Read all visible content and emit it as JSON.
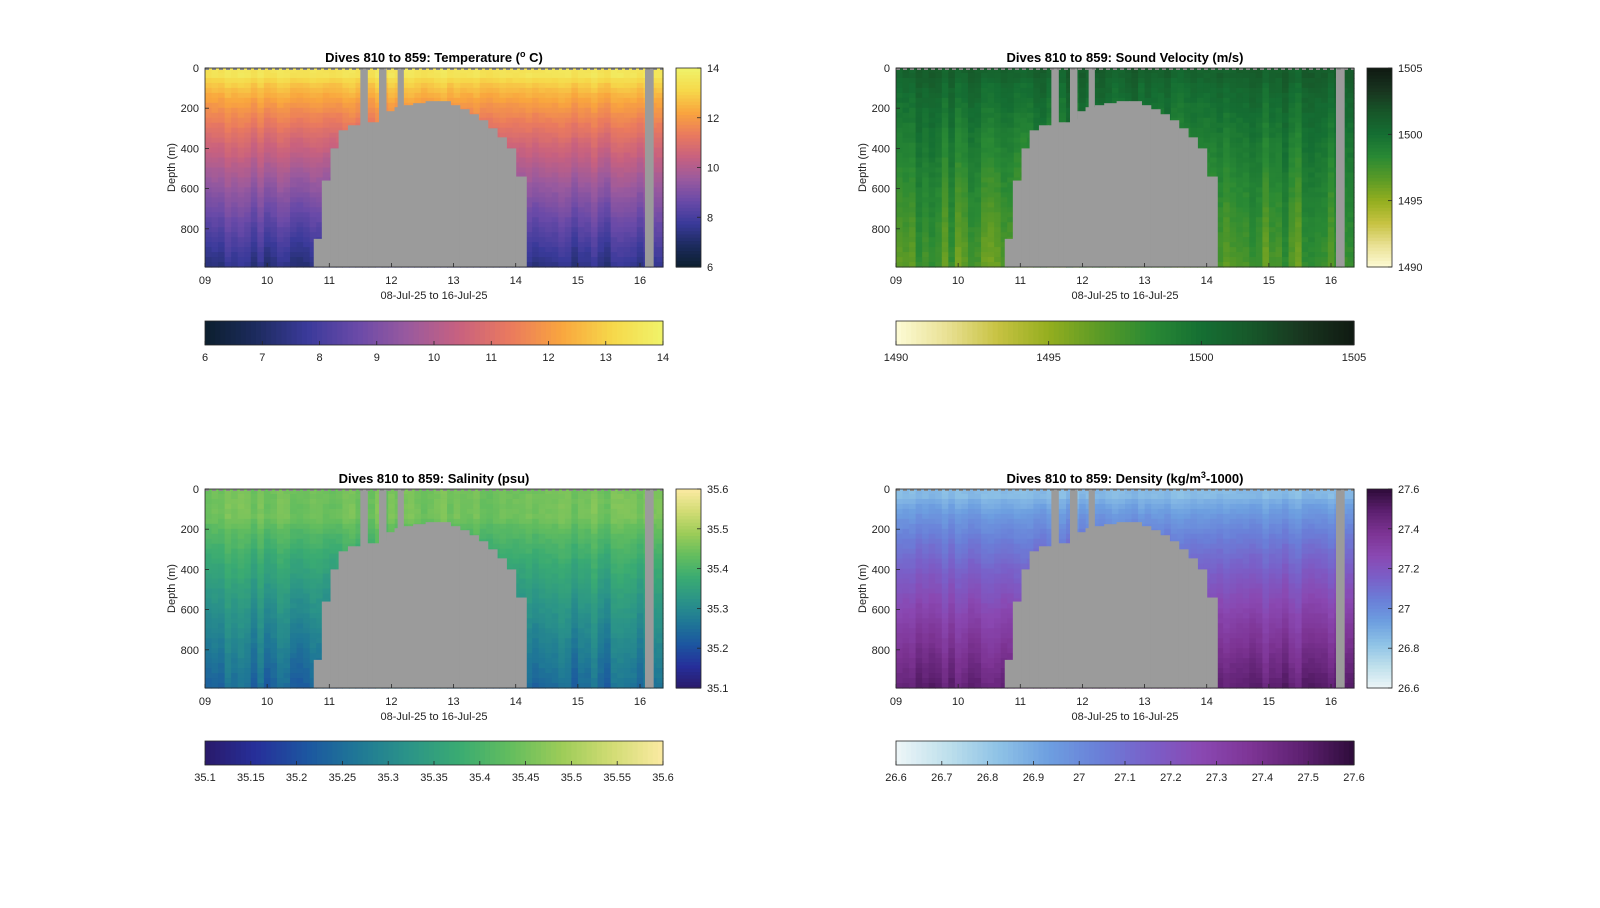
{
  "figure": {
    "missing_color": "#9b9b9b"
  },
  "chart_data": [
    {
      "id": "temperature",
      "type": "heatmap",
      "title_prefix": "Dives 810 to 859: Temperature (",
      "title_sup": "o",
      "title_suffix": " C)",
      "xlabel": "08-Jul-25 to 16-Jul-25",
      "ylabel": "Depth (m)",
      "xlim": [
        9.0,
        16.37
      ],
      "ylim": [
        0,
        990
      ],
      "xticks": [
        "09",
        "10",
        "11",
        "12",
        "13",
        "14",
        "15",
        "16"
      ],
      "xtick_values": [
        9,
        10,
        11,
        12,
        13,
        14,
        15,
        16
      ],
      "yticks": [
        "0",
        "200",
        "400",
        "600",
        "800"
      ],
      "ytick_values": [
        0,
        200,
        400,
        600,
        800
      ],
      "clim": [
        6,
        14
      ],
      "colorbar_side_ticks": [
        "6",
        "8",
        "10",
        "12",
        "14"
      ],
      "colorbar_side_values": [
        6,
        8,
        10,
        12,
        14
      ],
      "colorbar_bottom_ticks": [
        "6",
        "7",
        "8",
        "9",
        "10",
        "11",
        "12",
        "13",
        "14"
      ],
      "colorbar_bottom_values": [
        6,
        7,
        8,
        9,
        10,
        11,
        12,
        13,
        14
      ],
      "colormap": [
        "#0c1f2e",
        "#1c2b5e",
        "#3a3a9a",
        "#6a4aa8",
        "#9a5a9e",
        "#c8617f",
        "#ea7a5e",
        "#f9a53e",
        "#f6d84a",
        "#f0f36a"
      ],
      "profile": {
        "surface": 13.5,
        "mixed_depth": 40,
        "deep": 7.4
      },
      "column_variation": 0.35
    },
    {
      "id": "sound-velocity",
      "type": "heatmap",
      "title_prefix": "Dives 810 to 859: Sound Velocity (m/s)",
      "title_sup": "",
      "title_suffix": "",
      "xlabel": "08-Jul-25 to 16-Jul-25",
      "ylabel": "Depth (m)",
      "xlim": [
        9.0,
        16.37
      ],
      "ylim": [
        0,
        990
      ],
      "xticks": [
        "09",
        "10",
        "11",
        "12",
        "13",
        "14",
        "15",
        "16"
      ],
      "xtick_values": [
        9,
        10,
        11,
        12,
        13,
        14,
        15,
        16
      ],
      "yticks": [
        "0",
        "200",
        "400",
        "600",
        "800"
      ],
      "ytick_values": [
        0,
        200,
        400,
        600,
        800
      ],
      "clim": [
        1490,
        1505
      ],
      "colorbar_side_ticks": [
        "1490",
        "1495",
        "1500",
        "1505"
      ],
      "colorbar_side_values": [
        1490,
        1495,
        1500,
        1505
      ],
      "colorbar_bottom_ticks": [
        "1490",
        "1495",
        "1500",
        "1505"
      ],
      "colorbar_bottom_values": [
        1490,
        1495,
        1500,
        1505
      ],
      "colormap": [
        "#fdfbd6",
        "#e9e194",
        "#c7c242",
        "#94ae1f",
        "#5a9a26",
        "#2a8a34",
        "#156f33",
        "#175729",
        "#18351f",
        "#101a12"
      ],
      "profile": {
        "surface": 1501.0,
        "mixed_depth": 40,
        "deep": 1497.0
      },
      "column_variation": 1.3
    },
    {
      "id": "salinity",
      "type": "heatmap",
      "title_prefix": "Dives 810 to 859: Salinity (psu)",
      "title_sup": "",
      "title_suffix": "",
      "xlabel": "08-Jul-25 to 16-Jul-25",
      "ylabel": "Depth (m)",
      "xlim": [
        9.0,
        16.37
      ],
      "ylim": [
        0,
        990
      ],
      "xticks": [
        "09",
        "10",
        "11",
        "12",
        "13",
        "14",
        "15",
        "16"
      ],
      "xtick_values": [
        9,
        10,
        11,
        12,
        13,
        14,
        15,
        16
      ],
      "yticks": [
        "0",
        "200",
        "400",
        "600",
        "800"
      ],
      "ytick_values": [
        0,
        200,
        400,
        600,
        800
      ],
      "clim": [
        35.1,
        35.6
      ],
      "colorbar_side_ticks": [
        "35.1",
        "35.2",
        "35.3",
        "35.4",
        "35.5",
        "35.6"
      ],
      "colorbar_side_values": [
        35.1,
        35.2,
        35.3,
        35.4,
        35.5,
        35.6
      ],
      "colorbar_bottom_ticks": [
        "35.1",
        "35.15",
        "35.2",
        "35.25",
        "35.3",
        "35.35",
        "35.4",
        "35.45",
        "35.5",
        "35.55",
        "35.6"
      ],
      "colorbar_bottom_values": [
        35.1,
        35.15,
        35.2,
        35.25,
        35.3,
        35.35,
        35.4,
        35.45,
        35.5,
        35.55,
        35.6
      ],
      "colormap": [
        "#2a1a6a",
        "#262f9a",
        "#1c56a0",
        "#1f7896",
        "#2b9488",
        "#3aab72",
        "#63bd5e",
        "#9ccc58",
        "#d2dc74",
        "#fbeaa2"
      ],
      "profile": {
        "surface": 35.45,
        "mixed_depth": 150,
        "deep": 35.24
      },
      "column_variation": 0.03
    },
    {
      "id": "density",
      "type": "heatmap",
      "title_prefix": "Dives 810 to 859: Density (kg/m",
      "title_sup": "3",
      "title_suffix": "-1000)",
      "xlabel": "08-Jul-25 to 16-Jul-25",
      "ylabel": "Depth (m)",
      "xlim": [
        9.0,
        16.37
      ],
      "ylim": [
        0,
        990
      ],
      "xticks": [
        "09",
        "10",
        "11",
        "12",
        "13",
        "14",
        "15",
        "16"
      ],
      "xtick_values": [
        9,
        10,
        11,
        12,
        13,
        14,
        15,
        16
      ],
      "yticks": [
        "0",
        "200",
        "400",
        "600",
        "800"
      ],
      "ytick_values": [
        0,
        200,
        400,
        600,
        800
      ],
      "clim": [
        26.6,
        27.6
      ],
      "colorbar_side_ticks": [
        "26.6",
        "26.8",
        "27",
        "27.2",
        "27.4",
        "27.6"
      ],
      "colorbar_side_values": [
        26.6,
        26.8,
        27.0,
        27.2,
        27.4,
        27.6
      ],
      "colorbar_bottom_ticks": [
        "26.6",
        "26.7",
        "26.8",
        "26.9",
        "27",
        "27.1",
        "27.2",
        "27.3",
        "27.4",
        "27.5",
        "27.6"
      ],
      "colorbar_bottom_values": [
        26.6,
        26.7,
        26.8,
        26.9,
        27.0,
        27.1,
        27.2,
        27.3,
        27.4,
        27.5,
        27.6
      ],
      "colormap": [
        "#eef6f8",
        "#bfe0ec",
        "#8fc3e6",
        "#6d9fe0",
        "#6a7fd8",
        "#7a5fc8",
        "#8a48b2",
        "#7d3494",
        "#5d2070",
        "#2e0c3a"
      ],
      "profile": {
        "surface": 26.85,
        "mixed_depth": 40,
        "deep": 27.48
      },
      "column_variation": 0.05
    }
  ]
}
